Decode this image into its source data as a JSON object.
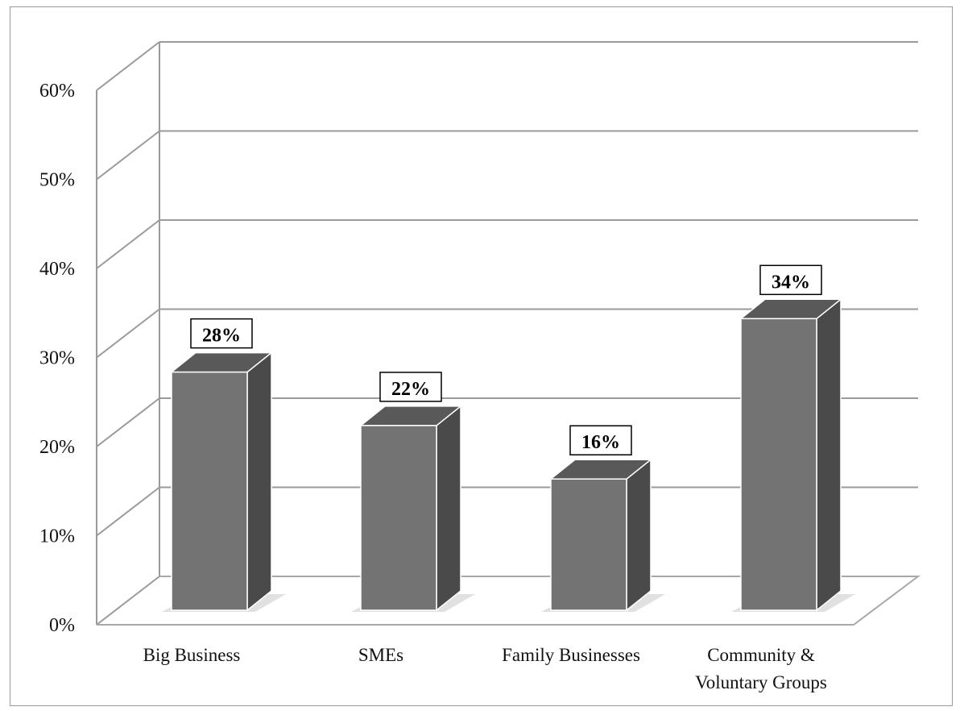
{
  "chart_data": {
    "type": "bar",
    "categories": [
      [
        "Big Business"
      ],
      [
        "SMEs"
      ],
      [
        "Family Businesses"
      ],
      [
        "Community &",
        "Voluntary Groups"
      ]
    ],
    "values": [
      28,
      22,
      16,
      34
    ],
    "data_labels": [
      "28%",
      "22%",
      "16%",
      "34%"
    ],
    "y_ticks": [
      "0%",
      "10%",
      "20%",
      "30%",
      "40%",
      "50%",
      "60%"
    ],
    "ylim": [
      0,
      60
    ],
    "title": "",
    "xlabel": "",
    "ylabel": "",
    "grid": true,
    "style": "3d-column",
    "colors": {
      "bar_front": "#737373",
      "bar_side": "#4a4a4a",
      "bar_top": "#595959",
      "grid": "#9a9a9a",
      "floor": "#a8a8a8"
    }
  }
}
